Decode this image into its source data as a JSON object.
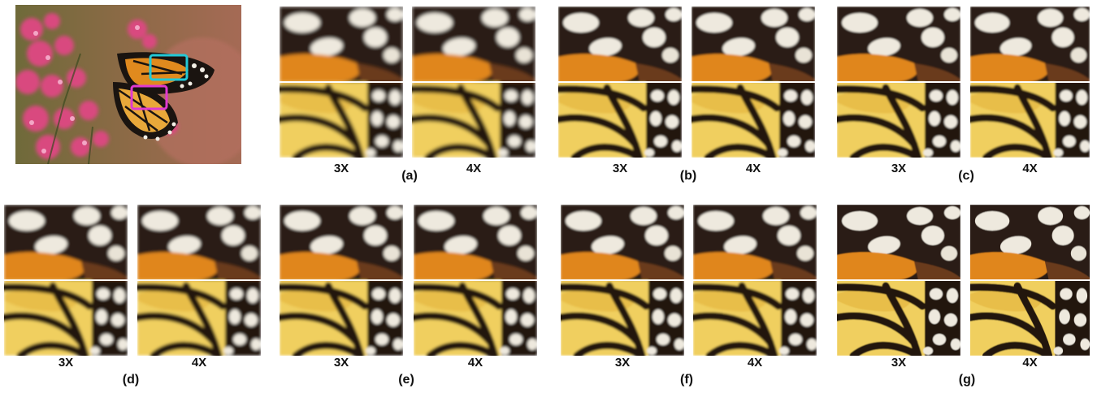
{
  "figure": {
    "overview": {
      "name": "butterfly-overview",
      "highlight_colors": [
        "#22c8d6",
        "#e03ad0"
      ]
    },
    "panels": [
      {
        "id": "a",
        "caption": "(a)",
        "scales": [
          "3X",
          "4X"
        ],
        "blur": 2.2
      },
      {
        "id": "b",
        "caption": "(b)",
        "scales": [
          "3X",
          "4X"
        ],
        "blur": 1.4
      },
      {
        "id": "c",
        "caption": "(c)",
        "scales": [
          "3X",
          "4X"
        ],
        "blur": 1.0
      },
      {
        "id": "d",
        "caption": "(d)",
        "scales": [
          "3X",
          "4X"
        ],
        "blur": 1.8
      },
      {
        "id": "e",
        "caption": "(e)",
        "scales": [
          "3X",
          "4X"
        ],
        "blur": 1.5
      },
      {
        "id": "f",
        "caption": "(f)",
        "scales": [
          "3X",
          "4X"
        ],
        "blur": 1.2
      },
      {
        "id": "g",
        "caption": "(g)",
        "scales": [
          "3X",
          "4X"
        ],
        "blur": 0.4
      }
    ]
  }
}
